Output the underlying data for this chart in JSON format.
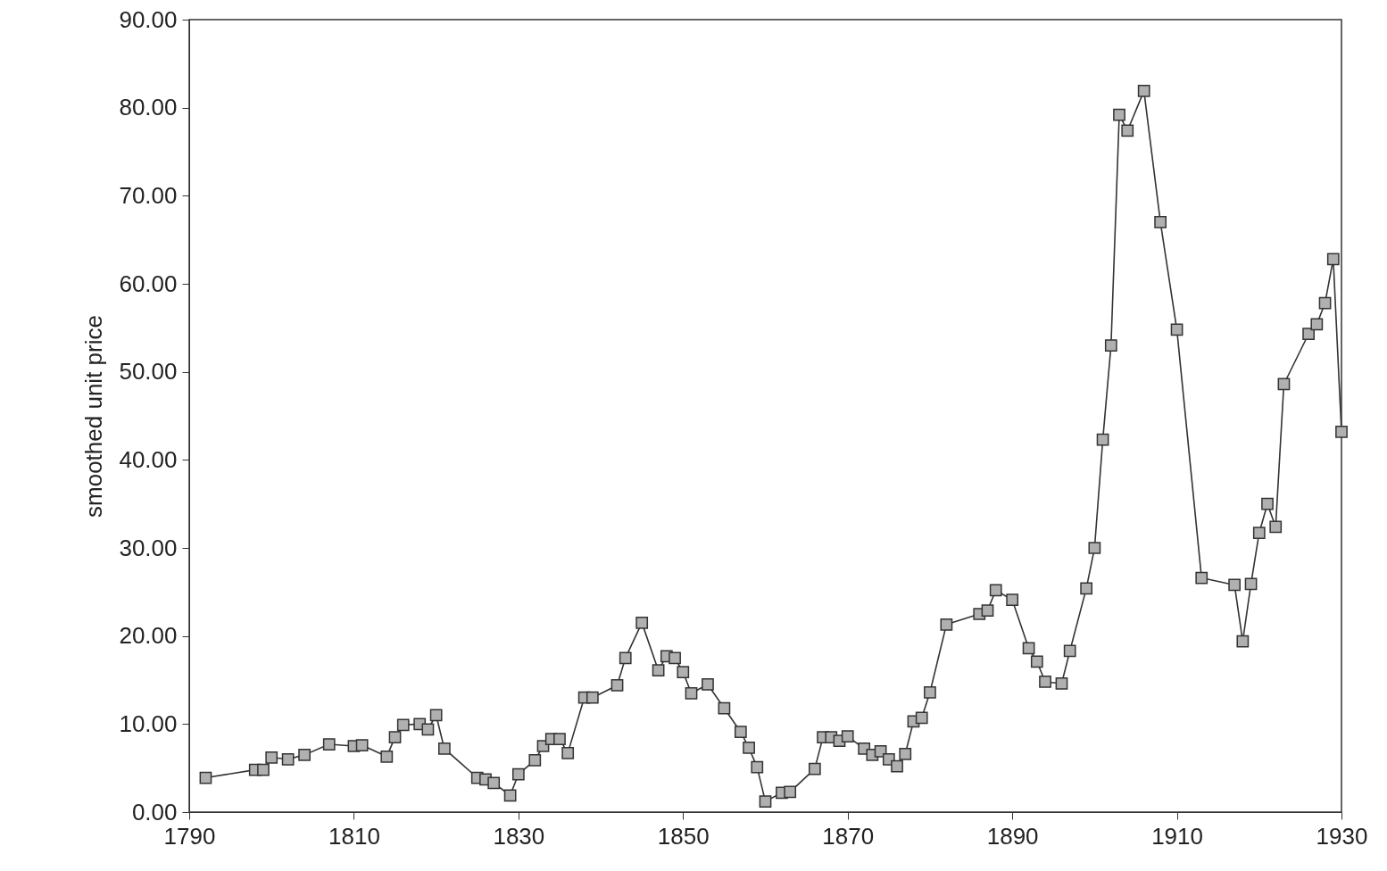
{
  "chart_data": {
    "type": "line",
    "ylabel": "smoothed unit price",
    "marker": "square",
    "grid": false,
    "xlim": [
      1790,
      1930
    ],
    "xticks": [
      1790,
      1810,
      1830,
      1850,
      1870,
      1890,
      1910,
      1930
    ],
    "ylim": [
      0,
      90
    ],
    "yticks": [
      {
        "value": 0,
        "label": "0.00"
      },
      {
        "value": 10,
        "label": "10.00"
      },
      {
        "value": 20,
        "label": "20.00"
      },
      {
        "value": 30,
        "label": "30.00"
      },
      {
        "value": 40,
        "label": "40.00"
      },
      {
        "value": 50,
        "label": "50.00"
      },
      {
        "value": 60,
        "label": "60.00"
      },
      {
        "value": 70,
        "label": "70.00"
      },
      {
        "value": 80,
        "label": "80.00"
      },
      {
        "value": 90,
        "label": "90.00"
      }
    ],
    "x": [
      1792,
      1798,
      1799,
      1800,
      1802,
      1804,
      1807,
      1810,
      1811,
      1814,
      1815,
      1816,
      1818,
      1819,
      1820,
      1821,
      1825,
      1826,
      1827,
      1829,
      1830,
      1832,
      1833,
      1834,
      1835,
      1836,
      1838,
      1839,
      1842,
      1843,
      1845,
      1847,
      1848,
      1849,
      1850,
      1851,
      1853,
      1855,
      1857,
      1858,
      1859,
      1860,
      1862,
      1863,
      1866,
      1867,
      1868,
      1869,
      1870,
      1872,
      1873,
      1874,
      1875,
      1876,
      1877,
      1878,
      1879,
      1880,
      1882,
      1886,
      1887,
      1888,
      1890,
      1892,
      1893,
      1894,
      1896,
      1897,
      1899,
      1900,
      1901,
      1902,
      1903,
      1904,
      1906,
      1908,
      1910,
      1913,
      1917,
      1918,
      1919,
      1920,
      1921,
      1922,
      1923,
      1926,
      1927,
      1928,
      1929,
      1930
    ],
    "series": [
      {
        "color": "#333333",
        "values": [
          3.9,
          4.8,
          4.8,
          6.2,
          6.0,
          6.5,
          7.7,
          7.5,
          7.6,
          6.3,
          8.5,
          9.9,
          10.0,
          9.4,
          11.0,
          7.2,
          3.9,
          3.7,
          3.3,
          1.9,
          4.3,
          5.9,
          7.5,
          8.3,
          8.3,
          6.7,
          13.0,
          13.0,
          14.4,
          17.5,
          21.5,
          16.1,
          17.7,
          17.5,
          15.9,
          13.5,
          14.5,
          11.8,
          9.1,
          7.3,
          5.1,
          1.2,
          2.2,
          2.3,
          4.9,
          8.5,
          8.5,
          8.1,
          8.6,
          7.2,
          6.5,
          6.9,
          6.0,
          5.2,
          6.6,
          10.3,
          10.7,
          13.6,
          21.3,
          22.5,
          22.9,
          25.2,
          24.1,
          18.6,
          17.1,
          14.8,
          14.6,
          18.3,
          25.4,
          30.0,
          42.3,
          53.0,
          79.2,
          77.4,
          81.9,
          67.0,
          54.8,
          26.6,
          25.8,
          19.4,
          25.9,
          31.7,
          35.0,
          32.4,
          48.6,
          54.3,
          55.4,
          57.8,
          62.8,
          43.2
        ]
      }
    ]
  }
}
